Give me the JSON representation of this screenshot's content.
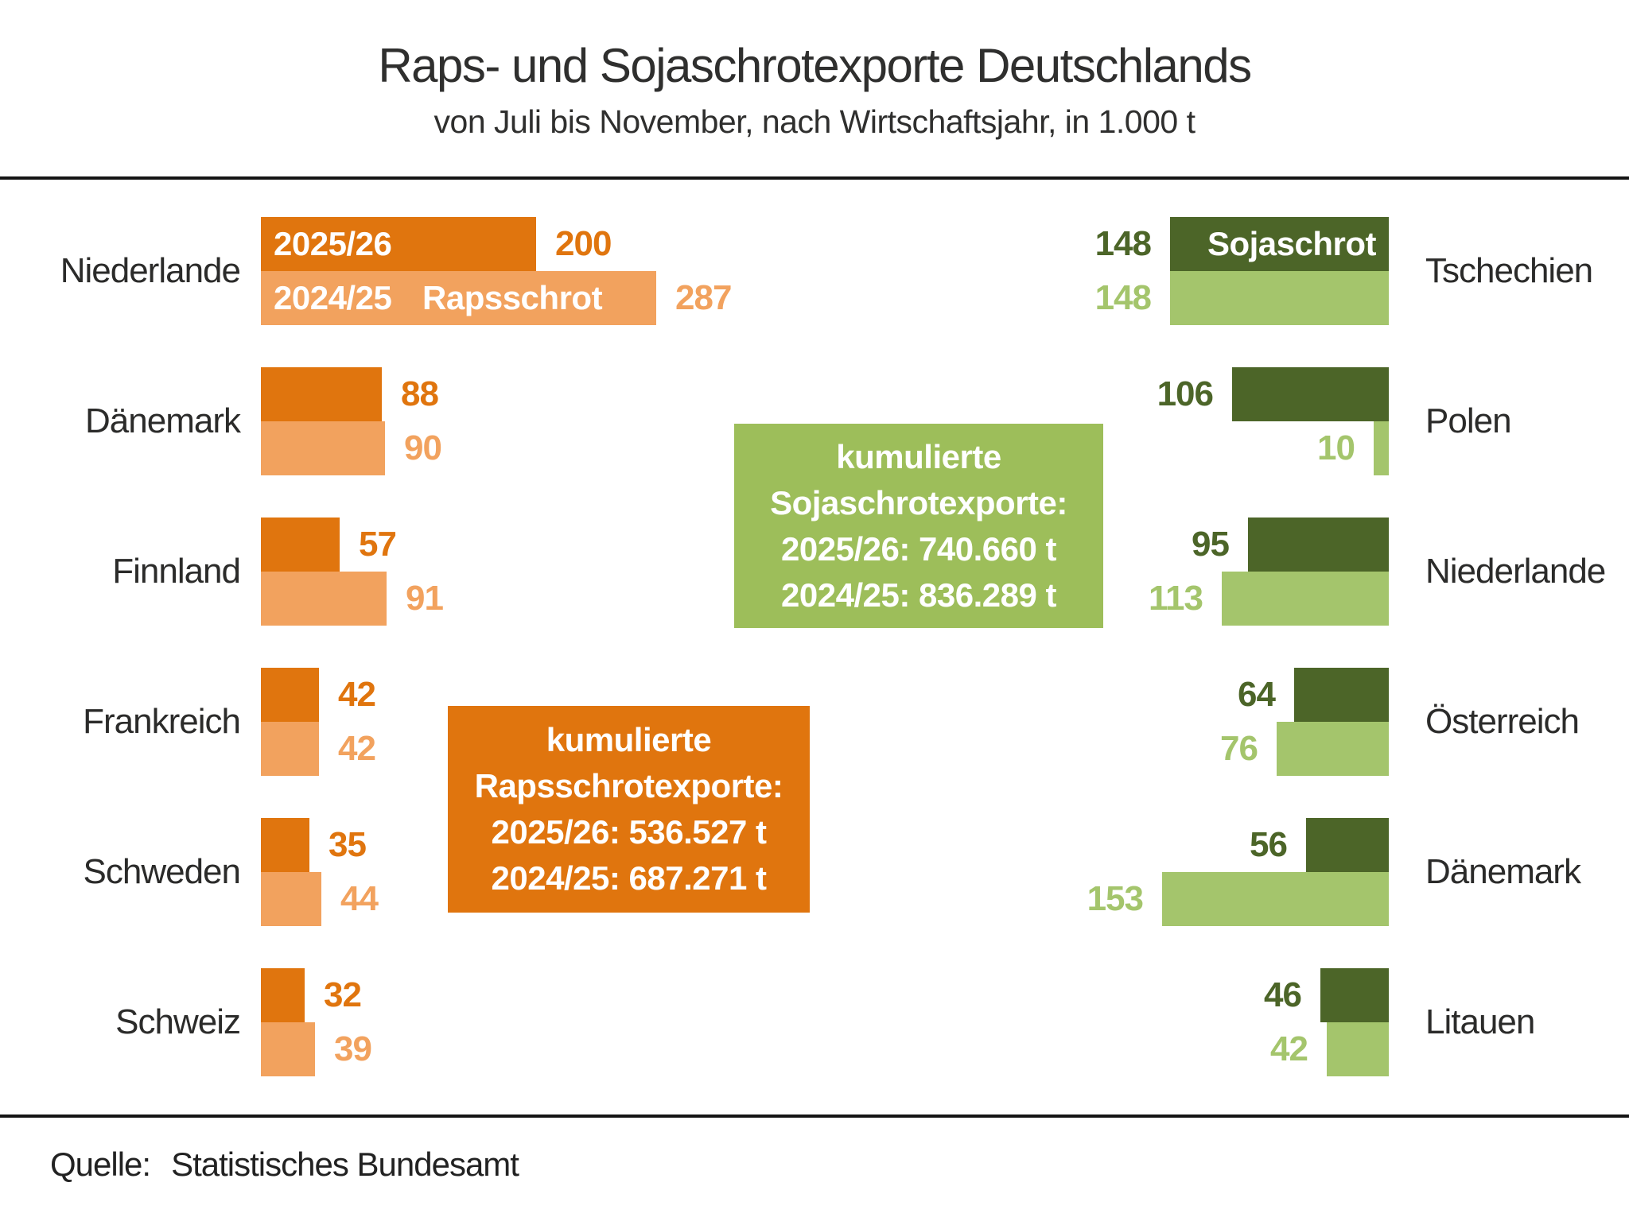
{
  "title": "Raps- und Sojaschrotexporte Deutschlands",
  "subtitle": "von Juli bis November, nach Wirtschaftsjahr, in 1.000 t",
  "legend": {
    "year_top": "2025/26",
    "year_bottom": "2024/25",
    "left_product": "Rapsschrot",
    "right_product": "Sojaschrot"
  },
  "boxes": {
    "soja": {
      "lines": [
        "kumulierte",
        "Sojaschrotexporte:",
        "2025/26: 740.660 t",
        "2024/25: 836.289 t"
      ]
    },
    "raps": {
      "lines": [
        "kumulierte",
        "Rapsschrotexporte:",
        "2025/26: 536.527 t",
        "2024/25: 687.271 t"
      ]
    }
  },
  "source": {
    "label": "Quelle:",
    "text": "Statistisches Bundesamt"
  },
  "colors": {
    "raps_dark": "#E0750E",
    "raps_light": "#F2A25E",
    "soja_dark": "#4C6528",
    "soja_light": "#A4C56C",
    "soja_box": "#9DBE5A"
  },
  "chart_data": [
    {
      "type": "bar",
      "orientation": "horizontal",
      "side": "left",
      "product": "Rapsschrot",
      "series_names": [
        "2025/26",
        "2024/25"
      ],
      "categories": [
        "Niederlande",
        "Dänemark",
        "Finnland",
        "Frankreich",
        "Schweden",
        "Schweiz"
      ],
      "series": [
        {
          "name": "2025/26",
          "values": [
            200,
            88,
            57,
            42,
            35,
            32
          ]
        },
        {
          "name": "2024/25",
          "values": [
            287,
            90,
            91,
            42,
            44,
            39
          ]
        }
      ],
      "unit": "1.000 t",
      "cumulative": {
        "2025/26": "536.527 t",
        "2024/25": "687.271 t"
      }
    },
    {
      "type": "bar",
      "orientation": "horizontal",
      "side": "right",
      "product": "Sojaschrot",
      "series_names": [
        "2025/26",
        "2024/25"
      ],
      "categories": [
        "Tschechien",
        "Polen",
        "Niederlande",
        "Österreich",
        "Dänemark",
        "Litauen"
      ],
      "series": [
        {
          "name": "2025/26",
          "values": [
            148,
            106,
            95,
            64,
            56,
            46
          ]
        },
        {
          "name": "2024/25",
          "values": [
            148,
            10,
            113,
            76,
            153,
            42
          ]
        }
      ],
      "unit": "1.000 t",
      "cumulative": {
        "2025/26": "740.660 t",
        "2024/25": "836.289 t"
      }
    }
  ]
}
